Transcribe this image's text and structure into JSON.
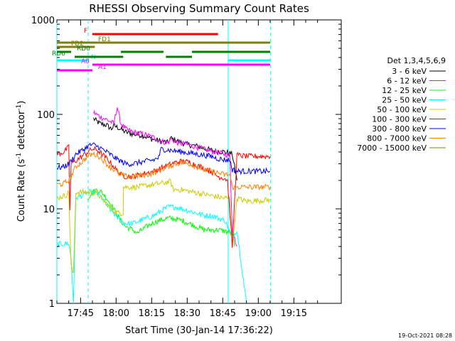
{
  "chart_data": {
    "type": "line",
    "title": "RHESSI Observing Summary Count Rates",
    "xlabel": "Start Time (30-Jan-14 17:36:22)",
    "ylabel_main": "Count Rate (s",
    "ylabel_sup1": "-1",
    "ylabel_mid": " detector",
    "ylabel_sup2": "-1",
    "ylabel_end": ")",
    "yscale": "log",
    "ylim": [
      1,
      1000
    ],
    "xlim_minutes": [
      -10,
      110
    ],
    "x_ticks": [
      {
        "m": 0,
        "label": "17:45"
      },
      {
        "m": 15,
        "label": "18:00"
      },
      {
        "m": 30,
        "label": "18:15"
      },
      {
        "m": 45,
        "label": "18:30"
      },
      {
        "m": 60,
        "label": "18:45"
      },
      {
        "m": 75,
        "label": "19:00"
      },
      {
        "m": 90,
        "label": "19:15"
      }
    ],
    "y_ticks": [
      {
        "v": 1,
        "label": "1"
      },
      {
        "v": 10,
        "label": "10"
      },
      {
        "v": 100,
        "label": "100"
      },
      {
        "v": 1000,
        "label": "1000"
      }
    ],
    "legend_title": "Det 1,3,4,5,6,9",
    "series": [
      {
        "name": "3 - 6 keV",
        "color": "#000000",
        "points": [
          [
            5.5,
            90
          ],
          [
            8,
            80
          ],
          [
            11,
            77
          ],
          [
            13,
            70
          ],
          [
            14,
            76
          ],
          [
            16,
            72
          ],
          [
            19,
            65
          ],
          [
            22,
            62
          ],
          [
            26,
            60
          ],
          [
            30,
            55
          ],
          [
            34,
            52
          ],
          [
            37,
            50
          ],
          [
            38,
            56
          ],
          [
            41,
            52
          ],
          [
            45,
            48
          ],
          [
            49,
            46
          ],
          [
            53,
            43
          ],
          [
            57,
            41
          ],
          [
            61,
            40
          ],
          [
            64,
            38
          ],
          [
            66,
            20
          ]
        ]
      },
      {
        "name": "6 - 12 keV",
        "color": "#ff00ff",
        "points": [
          [
            5.5,
            105
          ],
          [
            8,
            95
          ],
          [
            11,
            88
          ],
          [
            14,
            80
          ],
          [
            15.5,
            120
          ],
          [
            17,
            80
          ],
          [
            19,
            70
          ],
          [
            22,
            65
          ],
          [
            26,
            62
          ],
          [
            30,
            58
          ],
          [
            34,
            52
          ],
          [
            37,
            50
          ],
          [
            38,
            55
          ],
          [
            41,
            50
          ],
          [
            45,
            48
          ],
          [
            49,
            45
          ],
          [
            53,
            42
          ],
          [
            57,
            40
          ],
          [
            61,
            38
          ],
          [
            63,
            36
          ],
          [
            64,
            6
          ],
          [
            66,
            4
          ]
        ]
      },
      {
        "name": "12 - 25 keV",
        "color": "#00ff00",
        "points": [
          [
            3,
            13
          ],
          [
            4,
            14
          ],
          [
            5,
            15
          ],
          [
            7,
            16
          ],
          [
            9,
            15
          ],
          [
            11,
            13
          ],
          [
            13,
            11
          ],
          [
            15,
            9
          ],
          [
            17,
            7.5
          ],
          [
            19,
            6.5
          ],
          [
            22,
            6
          ],
          [
            24,
            5.5
          ],
          [
            26,
            6
          ],
          [
            28,
            6.5
          ],
          [
            30,
            7
          ],
          [
            33,
            7.5
          ],
          [
            37,
            8
          ],
          [
            40,
            7.8
          ],
          [
            43,
            7.5
          ],
          [
            46,
            7
          ],
          [
            49,
            6.5
          ],
          [
            52,
            6
          ],
          [
            55,
            6
          ],
          [
            58,
            6
          ],
          [
            61,
            5.8
          ],
          [
            64,
            5.5
          ],
          [
            65,
            4
          ]
        ]
      },
      {
        "name": "25 - 50 keV",
        "color": "#00ffff",
        "points": [
          [
            -10,
            4.2
          ],
          [
            -5,
            4.3
          ],
          [
            -4,
            3
          ],
          [
            -3,
            1
          ],
          [
            -2,
            13
          ],
          [
            1,
            14
          ],
          [
            3,
            15
          ],
          [
            5,
            15
          ],
          [
            7,
            14.5
          ],
          [
            9,
            13
          ],
          [
            11,
            11
          ],
          [
            13,
            9.5
          ],
          [
            15,
            8.5
          ],
          [
            17,
            7.5
          ],
          [
            19,
            7
          ],
          [
            22,
            7
          ],
          [
            25,
            7.5
          ],
          [
            28,
            8
          ],
          [
            31,
            8.5
          ],
          [
            34,
            9.5
          ],
          [
            37,
            10.5
          ],
          [
            40,
            10.5
          ],
          [
            43,
            10
          ],
          [
            46,
            9.5
          ],
          [
            49,
            9
          ],
          [
            52,
            8.5
          ],
          [
            55,
            8.5
          ],
          [
            58,
            8
          ],
          [
            61,
            7.5
          ],
          [
            64,
            5
          ],
          [
            66,
            6
          ],
          [
            70,
            1
          ]
        ]
      },
      {
        "name": "50 - 100 keV",
        "color": "#cccc00",
        "points": [
          [
            -10,
            13
          ],
          [
            -6,
            14
          ],
          [
            -5,
            15
          ],
          [
            -4,
            2.5
          ],
          [
            -3,
            2
          ],
          [
            -2,
            15
          ],
          [
            1,
            15
          ],
          [
            4,
            15
          ],
          [
            7,
            14.5
          ],
          [
            10,
            12
          ],
          [
            13,
            10
          ],
          [
            16,
            9
          ],
          [
            18,
            9
          ],
          [
            18.1,
            17
          ],
          [
            21,
            17
          ],
          [
            24,
            17
          ],
          [
            27,
            17.5
          ],
          [
            30,
            18
          ],
          [
            33,
            18.5
          ],
          [
            36,
            19
          ],
          [
            38,
            19.5
          ],
          [
            39,
            16
          ],
          [
            42,
            16
          ],
          [
            45,
            15.5
          ],
          [
            48,
            15
          ],
          [
            51,
            14.5
          ],
          [
            54,
            14
          ],
          [
            57,
            13.5
          ],
          [
            60,
            13
          ],
          [
            63,
            13
          ],
          [
            64,
            4
          ],
          [
            66,
            13
          ],
          [
            70,
            12
          ],
          [
            80,
            12.5
          ]
        ]
      },
      {
        "name": "100 - 300 keV",
        "color": "#ff0000",
        "points": [
          [
            -10,
            38
          ],
          [
            -7,
            40
          ],
          [
            -5,
            45
          ],
          [
            -4.5,
            10
          ],
          [
            -4,
            30
          ],
          [
            0,
            35
          ],
          [
            3,
            40
          ],
          [
            5,
            43
          ],
          [
            7,
            42
          ],
          [
            9,
            38
          ],
          [
            11,
            34
          ],
          [
            13,
            30
          ],
          [
            15,
            26
          ],
          [
            17,
            23
          ],
          [
            19,
            22
          ],
          [
            22,
            22
          ],
          [
            25,
            23
          ],
          [
            28,
            24
          ],
          [
            31,
            25
          ],
          [
            34,
            27
          ],
          [
            37,
            29
          ],
          [
            40,
            31
          ],
          [
            43,
            32
          ],
          [
            46,
            31
          ],
          [
            49,
            29
          ],
          [
            52,
            27
          ],
          [
            55,
            25
          ],
          [
            58,
            22
          ],
          [
            61,
            21
          ],
          [
            62,
            20
          ],
          [
            64,
            4
          ],
          [
            66,
            37
          ],
          [
            70,
            36
          ],
          [
            80,
            36
          ]
        ]
      },
      {
        "name": "300 - 800 keV",
        "color": "#0000ff",
        "points": [
          [
            -10,
            27
          ],
          [
            -7,
            28
          ],
          [
            -5,
            30
          ],
          [
            -4,
            32
          ],
          [
            -2,
            38
          ],
          [
            1,
            42
          ],
          [
            3,
            46
          ],
          [
            5,
            48
          ],
          [
            7,
            46
          ],
          [
            9,
            43
          ],
          [
            11,
            40
          ],
          [
            13,
            37
          ],
          [
            15,
            34
          ],
          [
            17,
            32
          ],
          [
            19,
            30
          ],
          [
            22,
            30
          ],
          [
            25,
            31
          ],
          [
            28,
            32
          ],
          [
            31,
            33
          ],
          [
            33,
            35
          ],
          [
            34,
            43
          ],
          [
            37,
            42
          ],
          [
            40,
            41
          ],
          [
            43,
            40
          ],
          [
            46,
            39
          ],
          [
            49,
            38
          ],
          [
            52,
            37
          ],
          [
            55,
            36
          ],
          [
            58,
            34
          ],
          [
            61,
            33
          ],
          [
            63,
            33
          ],
          [
            64,
            26
          ],
          [
            66,
            25
          ],
          [
            70,
            25
          ],
          [
            80,
            25
          ]
        ]
      },
      {
        "name": "800 - 7000 keV",
        "color": "#ff8000",
        "points": [
          [
            -10,
            18
          ],
          [
            -7,
            18.5
          ],
          [
            -5,
            20
          ],
          [
            -4,
            22
          ],
          [
            -2,
            28
          ],
          [
            1,
            32
          ],
          [
            3,
            36
          ],
          [
            5,
            38
          ],
          [
            7,
            37
          ],
          [
            9,
            34
          ],
          [
            11,
            30
          ],
          [
            13,
            27
          ],
          [
            15,
            25
          ],
          [
            17,
            23
          ],
          [
            19,
            22
          ],
          [
            22,
            22
          ],
          [
            25,
            22.5
          ],
          [
            28,
            23
          ],
          [
            31,
            24
          ],
          [
            34,
            26
          ],
          [
            37,
            28
          ],
          [
            40,
            30
          ],
          [
            43,
            31
          ],
          [
            46,
            30
          ],
          [
            49,
            28
          ],
          [
            52,
            26
          ],
          [
            55,
            25
          ],
          [
            58,
            24
          ],
          [
            61,
            23
          ],
          [
            63,
            23
          ],
          [
            64,
            17
          ],
          [
            66,
            17
          ],
          [
            70,
            17
          ],
          [
            80,
            17
          ]
        ]
      }
    ],
    "flags": [
      {
        "label": "N",
        "color": "#00ffff",
        "y": 85,
        "segments": [
          [
            -10,
            3.2
          ],
          [
            62.3,
            80
          ]
        ]
      },
      {
        "label": "F",
        "color": "#ff0000",
        "y": 48,
        "segments": [
          [
            5,
            58
          ]
        ]
      },
      {
        "label": "FD1",
        "color": "#808000",
        "y": 60,
        "segments": [
          [
            -10,
            80
          ]
        ]
      },
      {
        "label": "FD2",
        "color": "#808000",
        "y": 66,
        "segments": [
          [
            -10,
            6
          ]
        ]
      },
      {
        "label": "RD0",
        "color": "#008000",
        "y": 73,
        "segments": [
          [
            -10,
            -4
          ],
          [
            17,
            35
          ],
          [
            47,
            80
          ]
        ]
      },
      {
        "label": "RD6",
        "color": "#008000",
        "y": 80,
        "segments": [
          [
            -2.5,
            18
          ],
          [
            36,
            47
          ]
        ]
      },
      {
        "label": "A0",
        "color": "#ff00ff",
        "y": 91,
        "segments": [
          [
            5,
            80
          ]
        ]
      },
      {
        "label": "A1",
        "color": "#ff00ff",
        "y": 99,
        "segments": [
          [
            -10,
            5
          ]
        ]
      }
    ],
    "saa_lines": [
      {
        "m": -10,
        "style": "solid"
      },
      {
        "m": 3.2,
        "style": "dashed"
      },
      {
        "m": 62.3,
        "style": "solid"
      },
      {
        "m": 80.2,
        "style": "dashed"
      }
    ],
    "saa_color": "#00ffff"
  },
  "footer": {
    "timestamp": "19-Oct-2021 08:28"
  }
}
